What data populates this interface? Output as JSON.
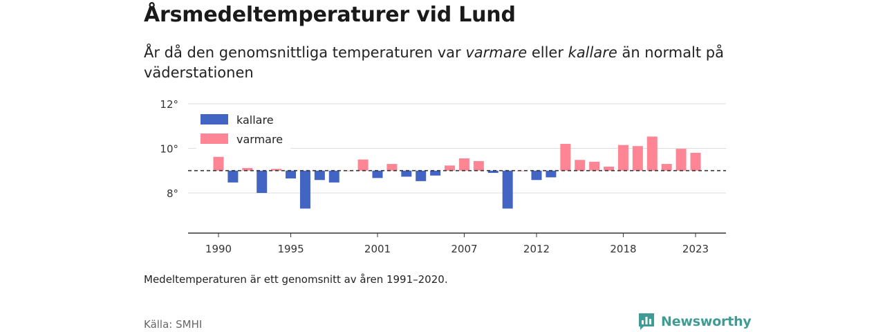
{
  "header": {
    "title": "Årsmedeltemperaturer vid Lund",
    "subtitle_part1": "År då den genomsnittliga temperaturen var ",
    "subtitle_em1": "varmare",
    "subtitle_part2": " eller ",
    "subtitle_em2": "kallare",
    "subtitle_part3": " än normalt på väderstationen"
  },
  "footer": {
    "note": "Medeltemperaturen är ett genomsnitt av åren 1991–2020.",
    "source": "Källa: SMHI",
    "brand": "Newsworthy"
  },
  "colors": {
    "kallare": "#4264c3",
    "varmare": "#fd8594",
    "axis": "#333333",
    "grid": "#dddddd",
    "brand": "#3f9c94"
  },
  "chart_data": {
    "type": "bar",
    "title": "Årsmedeltemperaturer vid Lund",
    "baseline": 9.0,
    "ylim": [
      6.2,
      12.0
    ],
    "yticks": [
      8,
      10,
      12
    ],
    "ytick_labels": [
      "8°",
      "10°",
      "12°"
    ],
    "xticks": [
      1990,
      1995,
      2001,
      2007,
      2012,
      2018,
      2023
    ],
    "legend": {
      "placement": "top-left",
      "entries": [
        "kallare",
        "varmare"
      ]
    },
    "x": [
      1990,
      1991,
      1992,
      1993,
      1994,
      1995,
      1996,
      1997,
      1998,
      1999,
      2000,
      2001,
      2002,
      2003,
      2004,
      2005,
      2006,
      2007,
      2008,
      2009,
      2010,
      2011,
      2012,
      2013,
      2014,
      2015,
      2016,
      2017,
      2018,
      2019,
      2020,
      2021,
      2022,
      2023
    ],
    "values": [
      9.62,
      8.47,
      9.12,
      8.0,
      9.08,
      8.65,
      7.3,
      8.58,
      8.47,
      9.0,
      9.5,
      8.67,
      9.3,
      8.73,
      8.53,
      8.78,
      9.23,
      9.55,
      9.43,
      8.9,
      7.3,
      9.0,
      8.58,
      8.7,
      10.2,
      9.48,
      9.4,
      9.18,
      10.15,
      10.1,
      10.53,
      9.3,
      9.98,
      9.8
    ],
    "grid": true
  }
}
